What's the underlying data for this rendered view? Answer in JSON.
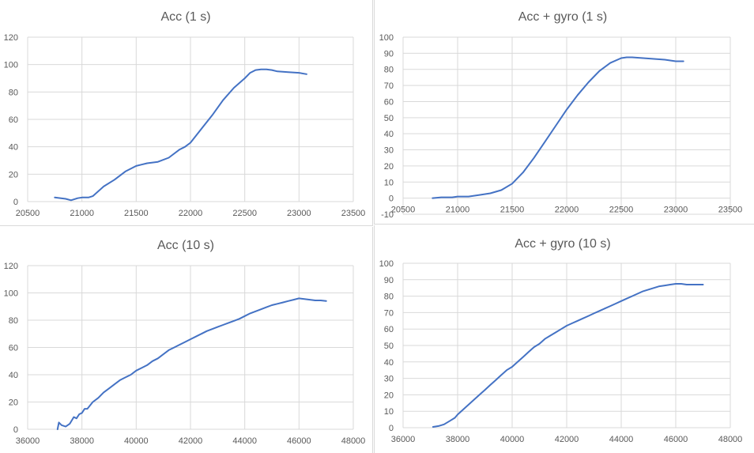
{
  "chart_data": [
    {
      "type": "line",
      "title": "Acc (1 s)",
      "xlabel": "",
      "ylabel": "",
      "xlim": [
        20500,
        23500
      ],
      "ylim": [
        0,
        120
      ],
      "xticks": [
        20500,
        21000,
        21500,
        22000,
        22500,
        23000,
        23500
      ],
      "yticks": [
        0,
        20,
        40,
        60,
        80,
        100,
        120
      ],
      "grid": true,
      "legend": "none",
      "series": [
        {
          "color": "#4472c4",
          "x": [
            20750,
            20850,
            20900,
            20960,
            21000,
            21060,
            21100,
            21200,
            21300,
            21400,
            21500,
            21550,
            21600,
            21700,
            21800,
            21900,
            21950,
            22000,
            22100,
            22200,
            22300,
            22400,
            22500,
            22550,
            22600,
            22650,
            22700,
            22750,
            22800,
            22900,
            23000,
            23070
          ],
          "y": [
            3,
            2,
            1,
            2.5,
            3,
            3,
            4,
            11,
            16,
            22,
            26,
            27,
            28,
            29,
            32,
            38,
            40,
            43,
            53,
            63,
            74,
            83,
            90,
            94,
            96,
            96.5,
            96.5,
            96,
            95,
            94.5,
            94,
            93
          ]
        }
      ]
    },
    {
      "type": "line",
      "title": "Acc + gyro (1 s)",
      "xlabel": "",
      "ylabel": "",
      "xlim": [
        20500,
        23500
      ],
      "ylim": [
        -10,
        100
      ],
      "xticks": [
        20500,
        21000,
        21500,
        22000,
        22500,
        23000,
        23500
      ],
      "yticks": [
        -10,
        0,
        10,
        20,
        30,
        40,
        50,
        60,
        70,
        80,
        90,
        100
      ],
      "grid": true,
      "legend": "none",
      "series": [
        {
          "color": "#4472c4",
          "x": [
            20770,
            20850,
            20950,
            21000,
            21100,
            21200,
            21300,
            21400,
            21500,
            21600,
            21700,
            21800,
            21900,
            22000,
            22100,
            22200,
            22300,
            22400,
            22500,
            22550,
            22600,
            22700,
            22800,
            22900,
            23000,
            23070
          ],
          "y": [
            0,
            0.5,
            0.5,
            1,
            1,
            2,
            3,
            5,
            9,
            16,
            25,
            35,
            45,
            55,
            64,
            72,
            79,
            84,
            87,
            87.5,
            87.5,
            87,
            86.5,
            86,
            85,
            85
          ]
        }
      ]
    },
    {
      "type": "line",
      "title": "Acc (10 s)",
      "xlabel": "",
      "ylabel": "",
      "xlim": [
        36000,
        48000
      ],
      "ylim": [
        0,
        120
      ],
      "xticks": [
        36000,
        38000,
        40000,
        42000,
        44000,
        46000,
        48000
      ],
      "yticks": [
        0,
        20,
        40,
        60,
        80,
        100,
        120
      ],
      "grid": true,
      "legend": "none",
      "series": [
        {
          "color": "#4472c4",
          "x": [
            37100,
            37150,
            37250,
            37400,
            37550,
            37700,
            37800,
            37900,
            38000,
            38100,
            38200,
            38400,
            38600,
            38800,
            39000,
            39200,
            39400,
            39600,
            39800,
            40000,
            40200,
            40400,
            40600,
            40800,
            41000,
            41200,
            41400,
            41600,
            41800,
            42000,
            42200,
            42400,
            42600,
            42800,
            43000,
            43200,
            43400,
            43600,
            43800,
            44000,
            44200,
            44400,
            44600,
            44800,
            45000,
            45200,
            45400,
            45600,
            45800,
            46000,
            46200,
            46400,
            46600,
            46800,
            47000
          ],
          "y": [
            0,
            5,
            3,
            2,
            4,
            9,
            8,
            11,
            12,
            15,
            15,
            20,
            23,
            27,
            30,
            33,
            36,
            38,
            40,
            43,
            45,
            47,
            50,
            52,
            55,
            58,
            60,
            62,
            64,
            66,
            68,
            70,
            72,
            73.5,
            75,
            76.5,
            78,
            79.5,
            81,
            83,
            85,
            86.5,
            88,
            89.5,
            91,
            92,
            93,
            94,
            95,
            96,
            95.5,
            95,
            94.5,
            94.5,
            94
          ]
        }
      ]
    },
    {
      "type": "line",
      "title": "Acc + gyro (10 s)",
      "xlabel": "",
      "ylabel": "",
      "xlim": [
        36000,
        48000
      ],
      "ylim": [
        0,
        100
      ],
      "xticks": [
        36000,
        38000,
        40000,
        42000,
        44000,
        46000,
        48000
      ],
      "yticks": [
        0,
        10,
        20,
        30,
        40,
        50,
        60,
        70,
        80,
        90,
        100
      ],
      "grid": true,
      "legend": "none",
      "series": [
        {
          "color": "#4472c4",
          "x": [
            37100,
            37300,
            37500,
            37700,
            37900,
            38000,
            38200,
            38400,
            38600,
            38800,
            39000,
            39200,
            39400,
            39600,
            39800,
            40000,
            40200,
            40400,
            40600,
            40800,
            41000,
            41200,
            41400,
            41600,
            41800,
            42000,
            42200,
            42400,
            42600,
            42800,
            43000,
            43200,
            43400,
            43600,
            43800,
            44000,
            44200,
            44400,
            44600,
            44800,
            45000,
            45200,
            45400,
            45600,
            45800,
            46000,
            46200,
            46400,
            46600,
            46800,
            47000
          ],
          "y": [
            0.5,
            1,
            2,
            4,
            6,
            8,
            11,
            14,
            17,
            20,
            23,
            26,
            29,
            32,
            35,
            37,
            40,
            43,
            46,
            49,
            51,
            54,
            56,
            58,
            60,
            62,
            63.5,
            65,
            66.5,
            68,
            69.5,
            71,
            72.5,
            74,
            75.5,
            77,
            78.5,
            80,
            81.5,
            83,
            84,
            85,
            86,
            86.5,
            87,
            87.5,
            87.5,
            87,
            87,
            87,
            87
          ]
        }
      ]
    }
  ]
}
